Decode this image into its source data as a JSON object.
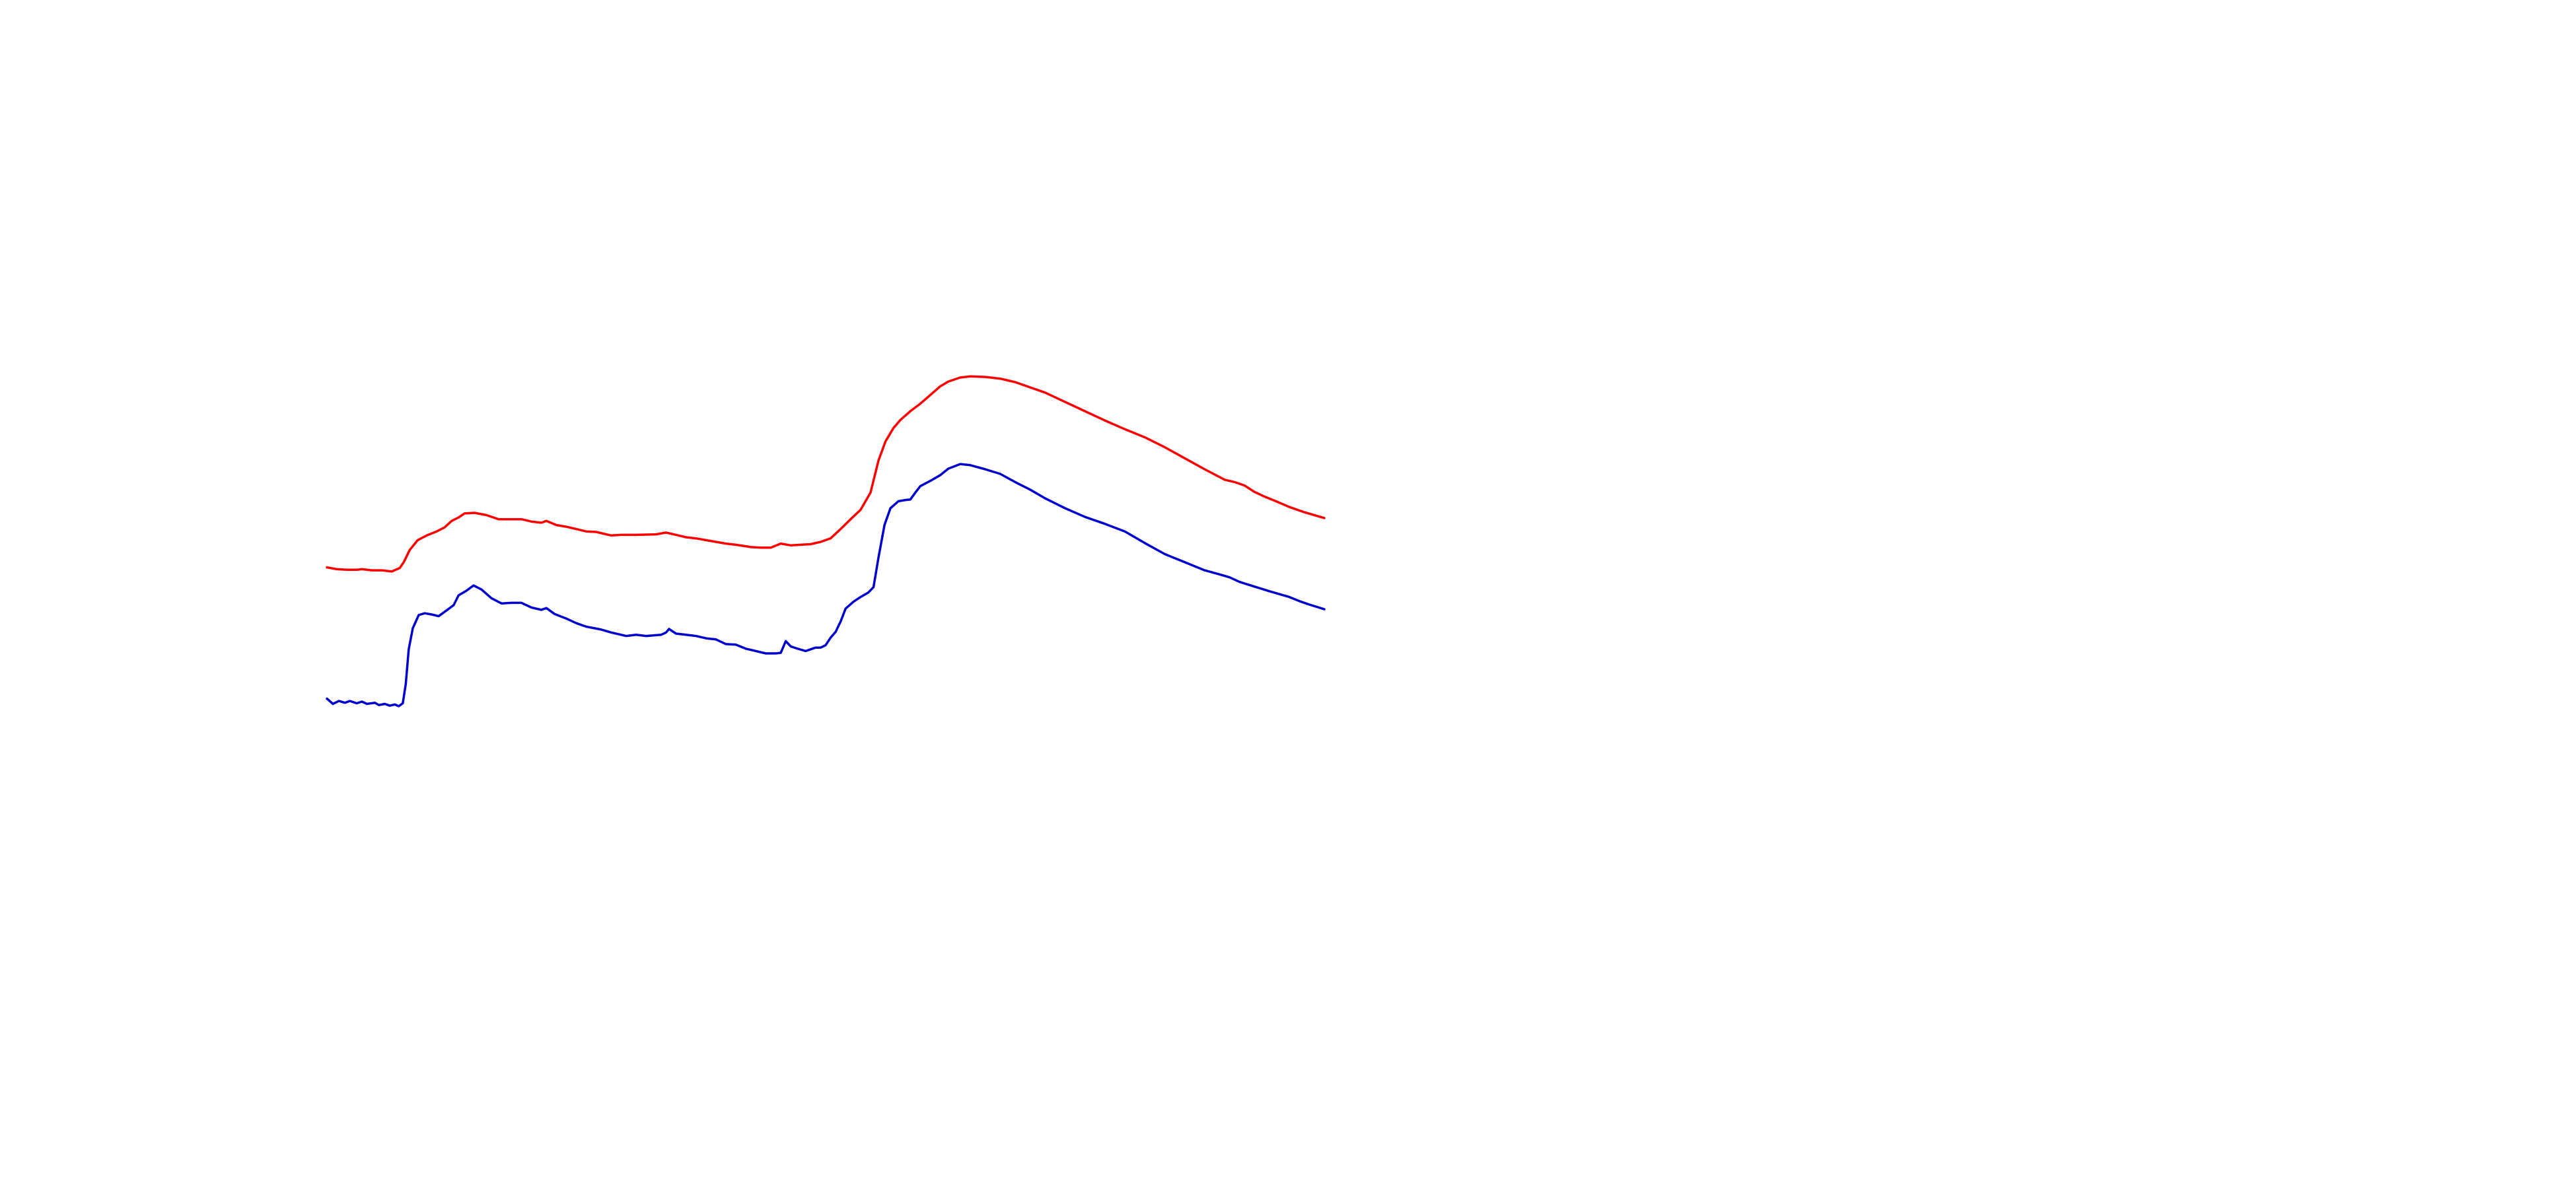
{
  "chart_data": {
    "type": "line",
    "title": "",
    "xlabel": "",
    "ylabel": "",
    "grid": false,
    "axes_visible": false,
    "legend": "none",
    "xlim": [
      0,
      100
    ],
    "ylim": [
      0,
      100
    ],
    "series": [
      {
        "color": "#ff0000",
        "points": [
          [
            0.0,
            50.6
          ],
          [
            1.0,
            50.3
          ],
          [
            2.0,
            50.2
          ],
          [
            3.0,
            50.2
          ],
          [
            3.5,
            50.3
          ],
          [
            4.5,
            50.1
          ],
          [
            5.5,
            50.1
          ],
          [
            6.5,
            49.9
          ],
          [
            7.3,
            50.5
          ],
          [
            7.7,
            51.5
          ],
          [
            8.3,
            53.6
          ],
          [
            9.1,
            55.3
          ],
          [
            10.0,
            56.1
          ],
          [
            11.0,
            56.8
          ],
          [
            11.8,
            57.5
          ],
          [
            12.5,
            58.6
          ],
          [
            13.2,
            59.2
          ],
          [
            13.8,
            59.9
          ],
          [
            14.8,
            60.0
          ],
          [
            16.0,
            59.6
          ],
          [
            17.2,
            58.9
          ],
          [
            18.5,
            58.9
          ],
          [
            19.5,
            58.9
          ],
          [
            20.5,
            58.5
          ],
          [
            21.5,
            58.3
          ],
          [
            22.0,
            58.6
          ],
          [
            23.0,
            57.9
          ],
          [
            24.0,
            57.6
          ],
          [
            25.0,
            57.2
          ],
          [
            26.0,
            56.8
          ],
          [
            27.0,
            56.7
          ],
          [
            28.5,
            56.1
          ],
          [
            29.5,
            56.2
          ],
          [
            31.0,
            56.2
          ],
          [
            33.0,
            56.3
          ],
          [
            34.0,
            56.6
          ],
          [
            35.0,
            56.2
          ],
          [
            36.0,
            55.8
          ],
          [
            37.0,
            55.6
          ],
          [
            38.0,
            55.3
          ],
          [
            39.0,
            55.0
          ],
          [
            40.0,
            54.7
          ],
          [
            41.0,
            54.5
          ],
          [
            42.5,
            54.1
          ],
          [
            43.5,
            54.0
          ],
          [
            44.5,
            54.0
          ],
          [
            45.5,
            54.7
          ],
          [
            46.5,
            54.4
          ],
          [
            47.5,
            54.5
          ],
          [
            48.5,
            54.6
          ],
          [
            49.5,
            55.0
          ],
          [
            50.5,
            55.6
          ],
          [
            51.5,
            57.2
          ],
          [
            52.5,
            58.9
          ],
          [
            53.5,
            60.5
          ],
          [
            54.5,
            63.5
          ],
          [
            55.3,
            69.0
          ],
          [
            56.0,
            72.3
          ],
          [
            56.8,
            74.6
          ],
          [
            57.5,
            76.0
          ],
          [
            58.5,
            77.5
          ],
          [
            59.5,
            78.8
          ],
          [
            60.5,
            80.3
          ],
          [
            61.5,
            81.8
          ],
          [
            62.3,
            82.6
          ],
          [
            63.5,
            83.3
          ],
          [
            64.5,
            83.5
          ],
          [
            66.0,
            83.4
          ],
          [
            67.5,
            83.1
          ],
          [
            69.0,
            82.5
          ],
          [
            70.5,
            81.6
          ],
          [
            72.0,
            80.7
          ],
          [
            74.0,
            79.1
          ],
          [
            76.0,
            77.5
          ],
          [
            78.0,
            75.9
          ],
          [
            80.0,
            74.4
          ],
          [
            82.0,
            73.0
          ],
          [
            84.0,
            71.3
          ],
          [
            86.0,
            69.4
          ],
          [
            88.0,
            67.5
          ],
          [
            90.0,
            65.7
          ],
          [
            91.0,
            65.3
          ],
          [
            92.0,
            64.7
          ],
          [
            93.0,
            63.6
          ],
          [
            94.0,
            62.8
          ],
          [
            95.0,
            62.1
          ],
          [
            96.5,
            61.0
          ],
          [
            98.0,
            60.1
          ],
          [
            100.0,
            59.1
          ]
        ]
      },
      {
        "color": "#0000cc",
        "points": [
          [
            0.0,
            28.0
          ],
          [
            0.6,
            27.1
          ],
          [
            1.2,
            27.6
          ],
          [
            1.8,
            27.3
          ],
          [
            2.3,
            27.6
          ],
          [
            3.0,
            27.2
          ],
          [
            3.5,
            27.5
          ],
          [
            4.0,
            27.1
          ],
          [
            4.8,
            27.3
          ],
          [
            5.2,
            26.9
          ],
          [
            5.8,
            27.1
          ],
          [
            6.3,
            26.8
          ],
          [
            6.8,
            27.0
          ],
          [
            7.2,
            26.7
          ],
          [
            7.6,
            27.2
          ],
          [
            7.9,
            30.5
          ],
          [
            8.2,
            36.5
          ],
          [
            8.6,
            40.1
          ],
          [
            9.2,
            42.4
          ],
          [
            9.8,
            42.7
          ],
          [
            10.5,
            42.5
          ],
          [
            11.2,
            42.2
          ],
          [
            12.0,
            43.2
          ],
          [
            12.7,
            44.1
          ],
          [
            13.2,
            45.8
          ],
          [
            14.0,
            46.6
          ],
          [
            14.7,
            47.5
          ],
          [
            15.5,
            46.8
          ],
          [
            16.5,
            45.3
          ],
          [
            17.5,
            44.4
          ],
          [
            18.5,
            44.5
          ],
          [
            19.5,
            44.5
          ],
          [
            20.5,
            43.7
          ],
          [
            21.5,
            43.3
          ],
          [
            22.0,
            43.6
          ],
          [
            22.8,
            42.6
          ],
          [
            24.0,
            41.8
          ],
          [
            25.0,
            41.0
          ],
          [
            26.0,
            40.4
          ],
          [
            27.5,
            39.9
          ],
          [
            28.5,
            39.4
          ],
          [
            30.0,
            38.8
          ],
          [
            31.0,
            39.0
          ],
          [
            32.0,
            38.8
          ],
          [
            33.5,
            39.0
          ],
          [
            34.0,
            39.4
          ],
          [
            34.3,
            40.0
          ],
          [
            35.0,
            39.2
          ],
          [
            36.0,
            39.0
          ],
          [
            37.0,
            38.8
          ],
          [
            38.0,
            38.4
          ],
          [
            39.0,
            38.2
          ],
          [
            40.0,
            37.4
          ],
          [
            41.0,
            37.3
          ],
          [
            42.0,
            36.6
          ],
          [
            43.0,
            36.2
          ],
          [
            44.0,
            35.8
          ],
          [
            45.0,
            35.8
          ],
          [
            45.5,
            35.9
          ],
          [
            46.0,
            37.9
          ],
          [
            46.5,
            37.0
          ],
          [
            47.0,
            36.7
          ],
          [
            48.0,
            36.2
          ],
          [
            48.5,
            36.5
          ],
          [
            49.0,
            36.8
          ],
          [
            49.5,
            36.8
          ],
          [
            50.0,
            37.2
          ],
          [
            50.5,
            38.5
          ],
          [
            51.0,
            39.5
          ],
          [
            51.5,
            41.3
          ],
          [
            52.0,
            43.5
          ],
          [
            52.8,
            44.7
          ],
          [
            53.5,
            45.5
          ],
          [
            54.3,
            46.3
          ],
          [
            54.8,
            47.2
          ],
          [
            55.3,
            52.3
          ],
          [
            55.9,
            57.9
          ],
          [
            56.5,
            60.8
          ],
          [
            57.3,
            62.0
          ],
          [
            58.0,
            62.2
          ],
          [
            58.5,
            62.3
          ],
          [
            59.0,
            63.5
          ],
          [
            59.5,
            64.6
          ],
          [
            60.5,
            65.5
          ],
          [
            61.5,
            66.5
          ],
          [
            62.3,
            67.6
          ],
          [
            63.5,
            68.4
          ],
          [
            64.5,
            68.2
          ],
          [
            66.0,
            67.5
          ],
          [
            67.5,
            66.7
          ],
          [
            69.0,
            65.3
          ],
          [
            70.5,
            64.0
          ],
          [
            72.0,
            62.5
          ],
          [
            74.0,
            60.8
          ],
          [
            76.0,
            59.3
          ],
          [
            78.0,
            58.1
          ],
          [
            80.0,
            56.8
          ],
          [
            82.0,
            54.8
          ],
          [
            84.0,
            52.9
          ],
          [
            86.0,
            51.5
          ],
          [
            88.0,
            50.1
          ],
          [
            89.5,
            49.4
          ],
          [
            90.5,
            48.9
          ],
          [
            91.5,
            48.1
          ],
          [
            93.0,
            47.3
          ],
          [
            94.5,
            46.5
          ],
          [
            95.5,
            46.0
          ],
          [
            96.5,
            45.5
          ],
          [
            97.5,
            44.8
          ],
          [
            98.5,
            44.2
          ],
          [
            100.0,
            43.4
          ]
        ]
      }
    ]
  }
}
